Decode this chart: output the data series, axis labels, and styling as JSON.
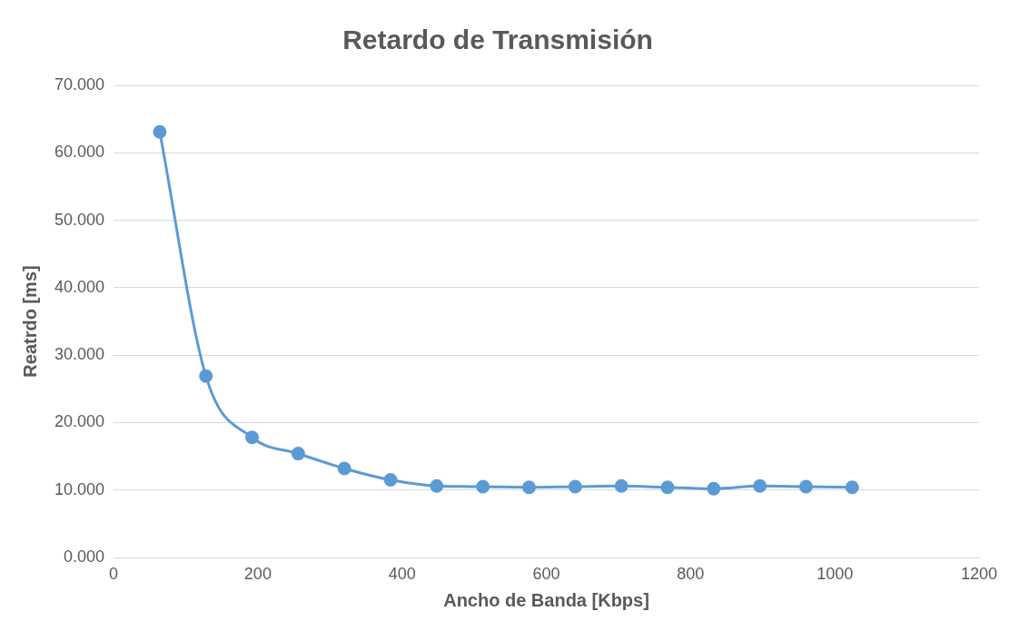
{
  "chart_data": {
    "type": "line",
    "title": "Retardo de Transmisión",
    "xlabel": "Ancho de Banda [Kbps]",
    "ylabel": "Reatrdo [ms]",
    "x": [
      64,
      128,
      192,
      256,
      320,
      384,
      448,
      512,
      576,
      640,
      704,
      768,
      832,
      896,
      960,
      1024
    ],
    "series": [
      {
        "color": "#5b9bd5",
        "values": [
          63.1,
          26.9,
          17.8,
          15.4,
          13.2,
          11.5,
          10.6,
          10.5,
          10.4,
          10.5,
          10.6,
          10.4,
          10.2,
          10.6,
          10.5,
          10.4
        ]
      }
    ],
    "xlim": [
      0,
      1200
    ],
    "xticks": [
      0,
      200,
      400,
      600,
      800,
      1000,
      1200
    ],
    "ylim": [
      0,
      70
    ],
    "yticks": [
      {
        "value": 0,
        "label": "0.000"
      },
      {
        "value": 10,
        "label": "10.000"
      },
      {
        "value": 20,
        "label": "20.000"
      },
      {
        "value": 30,
        "label": "30.000"
      },
      {
        "value": 40,
        "label": "40.000"
      },
      {
        "value": 50,
        "label": "50.000"
      },
      {
        "value": 60,
        "label": "60.000"
      },
      {
        "value": 70,
        "label": "70.000"
      }
    ],
    "grid": "y",
    "marker": "circle",
    "line_style": "solid",
    "legend": false
  }
}
